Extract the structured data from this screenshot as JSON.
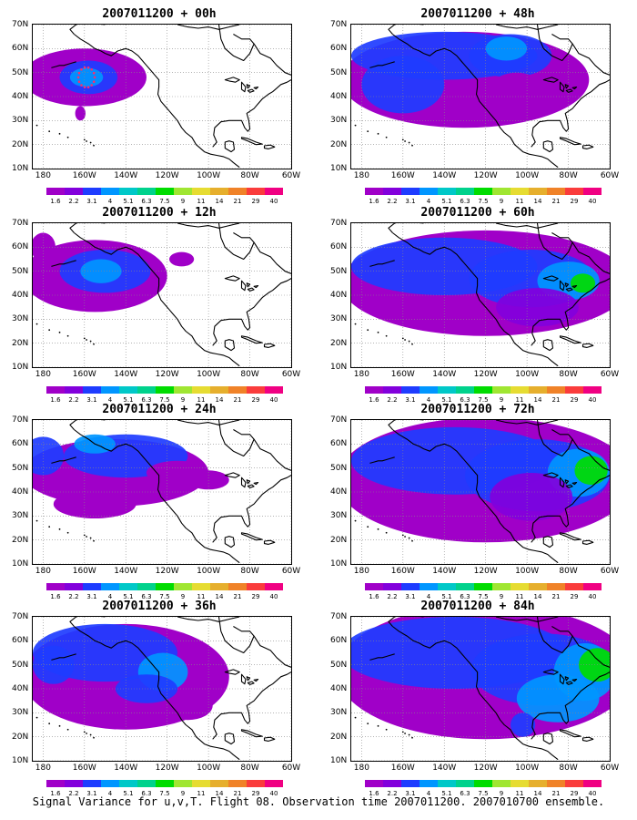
{
  "caption": "Signal Variance for u,v,T. Flight 08. Observation time 2007011200. 2007010700 ensemble.",
  "panels": [
    {
      "title": "2007011200 + 00h",
      "lead": 0
    },
    {
      "title": "2007011200 + 48h",
      "lead": 48
    },
    {
      "title": "2007011200 + 12h",
      "lead": 12
    },
    {
      "title": "2007011200 + 60h",
      "lead": 60
    },
    {
      "title": "2007011200 + 24h",
      "lead": 24
    },
    {
      "title": "2007011200 + 72h",
      "lead": 72
    },
    {
      "title": "2007011200 + 36h",
      "lead": 36
    },
    {
      "title": "2007011200 + 84h",
      "lead": 84
    }
  ],
  "lat_labels": [
    "70N",
    "60N",
    "50N",
    "40N",
    "30N",
    "20N",
    "10N"
  ],
  "lon_labels": [
    "180",
    "160W",
    "140W",
    "120W",
    "100W",
    "80W",
    "60W"
  ],
  "colorbar": {
    "labels": [
      "1.6",
      "2.2",
      "3.1",
      "4",
      "5.1",
      "6.3",
      "7.5",
      "9",
      "11",
      "14",
      "21",
      "29",
      "40"
    ],
    "colors": [
      "#a000c8",
      "#8200dc",
      "#1e3cff",
      "#0096ff",
      "#00c8c8",
      "#00d28c",
      "#00dc00",
      "#a0e632",
      "#e6dc32",
      "#e6af2d",
      "#f08228",
      "#fa3c3c",
      "#f00082"
    ]
  },
  "map": {
    "lat_range": [
      10,
      70
    ],
    "lon_range": [
      175,
      300
    ],
    "grid": true
  }
}
